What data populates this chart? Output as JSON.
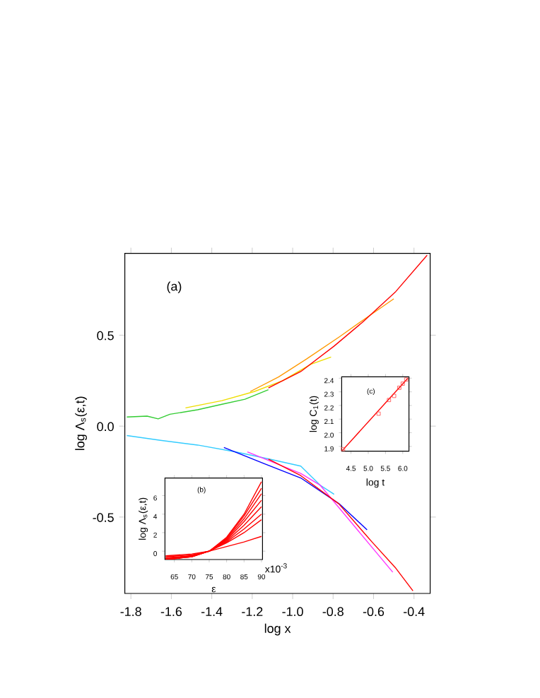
{
  "chart_data": [
    {
      "type": "line",
      "xlabel": "log x",
      "ylabel": "log Λ$_{s}$(ε,t)",
      "annotations": [
        "(a)"
      ],
      "xlim": [
        -1.83,
        -0.32
      ],
      "ylim": [
        -0.92,
        0.95
      ],
      "xticks": [
        -1.8,
        -1.6,
        -1.4,
        -1.2,
        {
          "value": -1,
          "label": "-1.0"
        },
        -0.8,
        -0.6,
        -0.4
      ],
      "yticks": [
        -0.5,
        {
          "value": 0,
          "label": "0.0"
        },
        0.5
      ],
      "grid": false,
      "line_style": "solid",
      "series": [
        {
          "color": "#33cc33",
          "x": [
            -1.82,
            -1.72,
            -1.665,
            -1.607,
            -1.47,
            -1.35,
            -1.236,
            -1.12
          ],
          "values": [
            0.05,
            0.055,
            0.04,
            0.065,
            0.09,
            0.12,
            0.148,
            0.2
          ]
        },
        {
          "color": "#eedd00",
          "x": [
            -1.53,
            -1.35,
            -1.19,
            -1.05,
            -0.91,
            -0.81
          ],
          "values": [
            0.1,
            0.14,
            0.19,
            0.25,
            0.34,
            0.38
          ]
        },
        {
          "color": "#ff9900",
          "x": [
            -1.21,
            -1.07,
            -0.93,
            -0.77,
            -0.63,
            -0.5
          ],
          "values": [
            0.19,
            0.27,
            0.37,
            0.49,
            0.6,
            0.7
          ]
        },
        {
          "color": "#ff0000",
          "x": [
            -1.12,
            -0.96,
            -0.795,
            -0.656,
            -0.49,
            -0.335
          ],
          "values": [
            0.21,
            0.3,
            0.44,
            0.57,
            0.74,
            0.94
          ]
        },
        {
          "color": "#33ccff",
          "x": [
            -1.82,
            -1.654,
            -1.47,
            -1.28,
            -1.12,
            -0.96,
            -0.865,
            -0.795
          ],
          "values": [
            -0.052,
            -0.078,
            -0.104,
            -0.142,
            -0.18,
            -0.22,
            -0.324,
            -0.375
          ]
        },
        {
          "color": "#0000ff",
          "x": [
            -1.34,
            -1.14,
            -0.96,
            -0.77,
            -0.632
          ],
          "values": [
            -0.117,
            -0.207,
            -0.285,
            -0.427,
            -0.57
          ]
        },
        {
          "color": "#ff33ff",
          "x": [
            -1.224,
            -0.96,
            -0.865,
            -0.748,
            -0.632,
            -0.505
          ],
          "values": [
            -0.142,
            -0.26,
            -0.324,
            -0.479,
            -0.634,
            -0.803
          ]
        },
        {
          "color": "#ff0000",
          "x": [
            -1.12,
            -0.96,
            -0.772,
            -0.61,
            -0.493,
            -0.405
          ],
          "values": [
            -0.181,
            -0.272,
            -0.427,
            -0.634,
            -0.777,
            -0.906
          ]
        }
      ]
    },
    {
      "type": "line",
      "xlabel": "ε",
      "ylabel": "log Λ$_{s}$(ε,t)",
      "annotations": [
        "(b)",
        "x10$^{-3}$"
      ],
      "xlim": [
        62.3,
        90.3
      ],
      "ylim": [
        -0.9,
        7.9
      ],
      "xticks": [
        65,
        70,
        75,
        80,
        85,
        90
      ],
      "yticks": [
        0,
        2,
        4,
        6
      ],
      "grid": false,
      "line_style": "solid",
      "series": [
        {
          "color": "#ff0000",
          "x": [
            62.5,
            70,
            75,
            80,
            85,
            90
          ],
          "values": [
            -0.5,
            -0.3,
            0,
            0.5,
            1.0,
            1.6
          ]
        },
        {
          "color": "#ff0000",
          "x": [
            62.5,
            70,
            75,
            80,
            85,
            90
          ],
          "values": [
            -0.6,
            -0.4,
            0,
            0.9,
            2.0,
            3.4
          ]
        },
        {
          "color": "#ff0000",
          "x": [
            62.5,
            70,
            75,
            80,
            85,
            90
          ],
          "values": [
            -0.7,
            -0.5,
            0,
            1.0,
            2.4,
            4.0
          ]
        },
        {
          "color": "#ff0000",
          "x": [
            62.5,
            70,
            75,
            80,
            85,
            90
          ],
          "values": [
            -0.8,
            -0.5,
            0,
            1.1,
            2.8,
            4.8
          ]
        },
        {
          "color": "#ff0000",
          "x": [
            62.5,
            70,
            75,
            80,
            85,
            90
          ],
          "values": [
            -0.8,
            -0.5,
            0,
            1.2,
            3.2,
            5.5
          ]
        },
        {
          "color": "#ff0000",
          "x": [
            62.5,
            70,
            75,
            80,
            85,
            90
          ],
          "values": [
            -0.9,
            -0.6,
            0,
            1.3,
            3.5,
            6.2
          ]
        },
        {
          "color": "#ff0000",
          "x": [
            62.5,
            70,
            75,
            80,
            85,
            90
          ],
          "values": [
            -0.9,
            -0.6,
            0,
            1.4,
            3.8,
            6.8
          ]
        },
        {
          "color": "#ff0000",
          "x": [
            62.5,
            70,
            75,
            80,
            85,
            90
          ],
          "values": [
            -0.9,
            -0.6,
            0,
            1.5,
            4.0,
            7.5
          ]
        }
      ]
    },
    {
      "type": "line",
      "xlabel": "log t",
      "ylabel": "log C$_{1}$(t)",
      "annotations": [
        "(c)"
      ],
      "xlim": [
        4.23,
        6.18
      ],
      "ylim": [
        1.865,
        2.41
      ],
      "xticks": [
        4.5,
        {
          "value": 5,
          "label": "5.0"
        },
        5.5,
        {
          "value": 6,
          "label": "6.0"
        }
      ],
      "yticks": [
        1.9,
        {
          "value": 2,
          "label": "2.0"
        },
        2.1,
        2.2,
        2.3,
        2.4
      ],
      "grid": false,
      "line_style": "solid",
      "series": [
        {
          "color": "#ff0000",
          "x": [
            4.25,
            6.15
          ],
          "values": [
            1.87,
            2.4
          ]
        },
        {
          "type": "scatter",
          "marker": "square",
          "color": "#ff4444",
          "x": [
            4.27,
            5.3,
            5.6,
            5.75,
            5.9,
            6.0,
            6.1
          ],
          "values": [
            1.88,
            2.14,
            2.24,
            2.27,
            2.33,
            2.36,
            2.39
          ]
        }
      ]
    }
  ]
}
